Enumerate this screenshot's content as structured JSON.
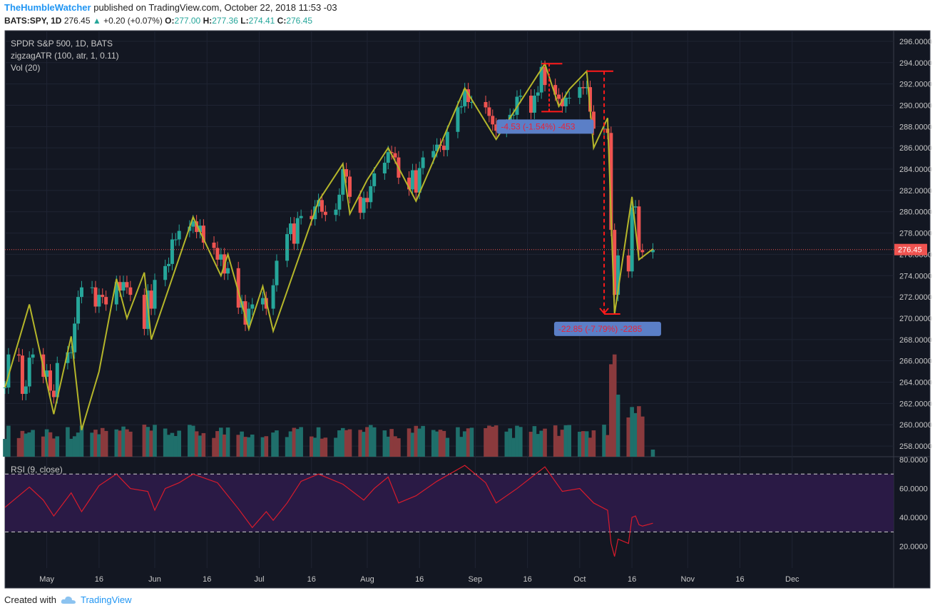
{
  "header": {
    "author": "TheHumbleWatcher",
    "published_text": "published on TradingView.com, October 22, 2018 11:53 -03",
    "symbol": "BATS:SPY, 1D",
    "last": "276.45",
    "change_arrow": "▲",
    "change": "+0.20 (+0.07%)",
    "o_label": "O:",
    "o_value": "277.00",
    "h_label": "H:",
    "h_value": "277.36",
    "l_label": "L:",
    "l_value": "274.41",
    "c_label": "C:",
    "c_value": "276.45"
  },
  "overlay": {
    "title": "SPDR S&P 500, 1D, BATS",
    "indicator": "zigzagATR (100, atr, 1, 0.11)",
    "volume": "Vol (20)",
    "rsi": "RSI (9, close)"
  },
  "footer": {
    "created_with": "Created with",
    "brand": "TradingView"
  },
  "colors": {
    "background": "#131722",
    "up": "#26a69a",
    "down": "#ef5350",
    "zigzag": "#b5b62a",
    "measure": "#ff1a1a",
    "rsi_line": "#d81b2c",
    "rsi_band": "#2a1a45",
    "price_tag": "#ef5350",
    "measure_label_bg": "#5b7fc7"
  },
  "chart_data": [
    {
      "type": "candlestick",
      "title": "SPDR S&P 500, 1D, BATS",
      "ylim": [
        257,
        297
      ],
      "y_ticks": [
        "258.0000",
        "260.0000",
        "262.0000",
        "264.0000",
        "266.0000",
        "268.0000",
        "270.0000",
        "272.0000",
        "274.0000",
        "276.0000",
        "278.0000",
        "280.0000",
        "282.0000",
        "284.0000",
        "286.0000",
        "288.0000",
        "290.0000",
        "292.0000",
        "294.0000",
        "296.0000"
      ],
      "last_price_label": "276.45",
      "x_ticks": [
        {
          "date": "2018-05-01",
          "label": "May"
        },
        {
          "date": "2018-05-16",
          "label": "16"
        },
        {
          "date": "2018-06-01",
          "label": "Jun"
        },
        {
          "date": "2018-06-16",
          "label": "16"
        },
        {
          "date": "2018-07-01",
          "label": "Jul"
        },
        {
          "date": "2018-07-16",
          "label": "16"
        },
        {
          "date": "2018-08-01",
          "label": "Aug"
        },
        {
          "date": "2018-08-16",
          "label": "16"
        },
        {
          "date": "2018-09-01",
          "label": "Sep"
        },
        {
          "date": "2018-09-16",
          "label": "16"
        },
        {
          "date": "2018-10-01",
          "label": "Oct"
        },
        {
          "date": "2018-10-16",
          "label": "16"
        },
        {
          "date": "2018-11-01",
          "label": "Nov"
        },
        {
          "date": "2018-11-16",
          "label": "16"
        },
        {
          "date": "2018-12-01",
          "label": "Dec"
        }
      ],
      "x_range": [
        "2018-04-19",
        "2018-12-25"
      ],
      "closes": [
        {
          "date": "2018-04-19",
          "close": 263.5
        },
        {
          "date": "2018-04-20",
          "close": 266.6
        },
        {
          "date": "2018-04-23",
          "close": 266.5
        },
        {
          "date": "2018-04-24",
          "close": 262.9
        },
        {
          "date": "2018-04-25",
          "close": 263.6
        },
        {
          "date": "2018-04-26",
          "close": 266.3
        },
        {
          "date": "2018-04-27",
          "close": 266.6
        },
        {
          "date": "2018-04-30",
          "close": 264.5
        },
        {
          "date": "2018-05-01",
          "close": 265.1
        },
        {
          "date": "2018-05-02",
          "close": 263.2
        },
        {
          "date": "2018-05-03",
          "close": 262.6
        },
        {
          "date": "2018-05-04",
          "close": 265.8
        },
        {
          "date": "2018-05-07",
          "close": 266.8
        },
        {
          "date": "2018-05-08",
          "close": 266.8
        },
        {
          "date": "2018-05-09",
          "close": 269.5
        },
        {
          "date": "2018-05-10",
          "close": 272.0
        },
        {
          "date": "2018-05-11",
          "close": 272.9
        },
        {
          "date": "2018-05-14",
          "close": 272.9
        },
        {
          "date": "2018-05-15",
          "close": 271.1
        },
        {
          "date": "2018-05-16",
          "close": 272.2
        },
        {
          "date": "2018-05-17",
          "close": 272.0
        },
        {
          "date": "2018-05-18",
          "close": 271.3
        },
        {
          "date": "2018-05-21",
          "close": 273.4
        },
        {
          "date": "2018-05-22",
          "close": 272.6
        },
        {
          "date": "2018-05-23",
          "close": 273.4
        },
        {
          "date": "2018-05-24",
          "close": 272.9
        },
        {
          "date": "2018-05-25",
          "close": 272.2
        },
        {
          "date": "2018-05-29",
          "close": 269.0
        },
        {
          "date": "2018-05-30",
          "close": 272.6
        },
        {
          "date": "2018-05-31",
          "close": 270.9
        },
        {
          "date": "2018-06-01",
          "close": 273.6
        },
        {
          "date": "2018-06-04",
          "close": 274.9
        },
        {
          "date": "2018-06-05",
          "close": 275.1
        },
        {
          "date": "2018-06-06",
          "close": 277.4
        },
        {
          "date": "2018-06-07",
          "close": 277.4
        },
        {
          "date": "2018-06-08",
          "close": 278.2
        },
        {
          "date": "2018-06-11",
          "close": 278.6
        },
        {
          "date": "2018-06-12",
          "close": 279.1
        },
        {
          "date": "2018-06-13",
          "close": 278.1
        },
        {
          "date": "2018-06-14",
          "close": 278.7
        },
        {
          "date": "2018-06-15",
          "close": 277.1
        },
        {
          "date": "2018-06-18",
          "close": 276.6
        },
        {
          "date": "2018-06-19",
          "close": 275.5
        },
        {
          "date": "2018-06-20",
          "close": 276.0
        },
        {
          "date": "2018-06-21",
          "close": 274.2
        },
        {
          "date": "2018-06-22",
          "close": 274.7
        },
        {
          "date": "2018-06-25",
          "close": 271.0
        },
        {
          "date": "2018-06-26",
          "close": 271.6
        },
        {
          "date": "2018-06-27",
          "close": 269.4
        },
        {
          "date": "2018-06-28",
          "close": 270.9
        },
        {
          "date": "2018-06-29",
          "close": 271.3
        },
        {
          "date": "2018-07-02",
          "close": 271.9
        },
        {
          "date": "2018-07-03",
          "close": 270.9
        },
        {
          "date": "2018-07-05",
          "close": 273.1
        },
        {
          "date": "2018-07-06",
          "close": 275.4
        },
        {
          "date": "2018-07-09",
          "close": 277.9
        },
        {
          "date": "2018-07-10",
          "close": 278.9
        },
        {
          "date": "2018-07-11",
          "close": 277.0
        },
        {
          "date": "2018-07-12",
          "close": 279.4
        },
        {
          "date": "2018-07-13",
          "close": 279.6
        },
        {
          "date": "2018-07-16",
          "close": 279.3
        },
        {
          "date": "2018-07-17",
          "close": 280.5
        },
        {
          "date": "2018-07-18",
          "close": 281.1
        },
        {
          "date": "2018-07-19",
          "close": 280.0
        },
        {
          "date": "2018-07-20",
          "close": 279.7
        },
        {
          "date": "2018-07-23",
          "close": 280.2
        },
        {
          "date": "2018-07-24",
          "close": 281.6
        },
        {
          "date": "2018-07-25",
          "close": 284.0
        },
        {
          "date": "2018-07-26",
          "close": 283.3
        },
        {
          "date": "2018-07-27",
          "close": 281.4
        },
        {
          "date": "2018-07-30",
          "close": 279.9
        },
        {
          "date": "2018-07-31",
          "close": 281.3
        },
        {
          "date": "2018-08-01",
          "close": 280.9
        },
        {
          "date": "2018-08-02",
          "close": 282.4
        },
        {
          "date": "2018-08-03",
          "close": 283.6
        },
        {
          "date": "2018-08-06",
          "close": 284.6
        },
        {
          "date": "2018-08-07",
          "close": 285.6
        },
        {
          "date": "2018-08-08",
          "close": 285.5
        },
        {
          "date": "2018-08-09",
          "close": 285.1
        },
        {
          "date": "2018-08-10",
          "close": 283.2
        },
        {
          "date": "2018-08-13",
          "close": 282.1
        },
        {
          "date": "2018-08-14",
          "close": 283.9
        },
        {
          "date": "2018-08-15",
          "close": 281.8
        },
        {
          "date": "2018-08-16",
          "close": 284.1
        },
        {
          "date": "2018-08-17",
          "close": 285.1
        },
        {
          "date": "2018-08-20",
          "close": 285.7
        },
        {
          "date": "2018-08-21",
          "close": 286.3
        },
        {
          "date": "2018-08-22",
          "close": 286.2
        },
        {
          "date": "2018-08-23",
          "close": 285.8
        },
        {
          "date": "2018-08-24",
          "close": 287.5
        },
        {
          "date": "2018-08-27",
          "close": 289.8
        },
        {
          "date": "2018-08-28",
          "close": 289.9
        },
        {
          "date": "2018-08-29",
          "close": 291.5
        },
        {
          "date": "2018-08-30",
          "close": 290.3
        },
        {
          "date": "2018-08-31",
          "close": 290.3
        },
        {
          "date": "2018-09-04",
          "close": 289.8
        },
        {
          "date": "2018-09-05",
          "close": 289.0
        },
        {
          "date": "2018-09-06",
          "close": 288.2
        },
        {
          "date": "2018-09-07",
          "close": 287.6
        },
        {
          "date": "2018-09-10",
          "close": 288.1
        },
        {
          "date": "2018-09-11",
          "close": 289.1
        },
        {
          "date": "2018-09-12",
          "close": 289.1
        },
        {
          "date": "2018-09-13",
          "close": 290.8
        },
        {
          "date": "2018-09-14",
          "close": 290.9
        },
        {
          "date": "2018-09-17",
          "close": 289.3
        },
        {
          "date": "2018-09-18",
          "close": 290.9
        },
        {
          "date": "2018-09-19",
          "close": 291.2
        },
        {
          "date": "2018-09-20",
          "close": 293.6
        },
        {
          "date": "2018-09-21",
          "close": 291.9
        },
        {
          "date": "2018-09-24",
          "close": 291.0
        },
        {
          "date": "2018-09-25",
          "close": 290.6
        },
        {
          "date": "2018-09-26",
          "close": 289.9
        },
        {
          "date": "2018-09-27",
          "close": 290.7
        },
        {
          "date": "2018-09-28",
          "close": 290.7
        },
        {
          "date": "2018-10-01",
          "close": 291.7
        },
        {
          "date": "2018-10-02",
          "close": 291.6
        },
        {
          "date": "2018-10-03",
          "close": 291.7
        },
        {
          "date": "2018-10-04",
          "close": 289.4
        },
        {
          "date": "2018-10-05",
          "close": 287.8
        },
        {
          "date": "2018-10-08",
          "close": 287.8
        },
        {
          "date": "2018-10-09",
          "close": 287.4
        },
        {
          "date": "2018-10-10",
          "close": 278.3
        },
        {
          "date": "2018-10-11",
          "close": 272.2
        },
        {
          "date": "2018-10-12",
          "close": 275.9
        },
        {
          "date": "2018-10-15",
          "close": 274.4
        },
        {
          "date": "2018-10-16",
          "close": 280.4
        },
        {
          "date": "2018-10-17",
          "close": 280.5
        },
        {
          "date": "2018-10-18",
          "close": 276.4
        },
        {
          "date": "2018-10-19",
          "close": 276.2
        },
        {
          "date": "2018-10-22",
          "close": 276.45
        }
      ],
      "zigzag": [
        {
          "date": "2018-04-19",
          "value": 263.5
        },
        {
          "date": "2018-04-26",
          "value": 271.3
        },
        {
          "date": "2018-05-03",
          "value": 261.0
        },
        {
          "date": "2018-05-08",
          "value": 268.3
        },
        {
          "date": "2018-05-11",
          "value": 259.5
        },
        {
          "date": "2018-05-16",
          "value": 265.0
        },
        {
          "date": "2018-05-21",
          "value": 273.7
        },
        {
          "date": "2018-05-24",
          "value": 270.0
        },
        {
          "date": "2018-05-29",
          "value": 274.3
        },
        {
          "date": "2018-05-31",
          "value": 268.0
        },
        {
          "date": "2018-06-12",
          "value": 279.5
        },
        {
          "date": "2018-06-20",
          "value": 274.0
        },
        {
          "date": "2018-06-22",
          "value": 276.0
        },
        {
          "date": "2018-06-28",
          "value": 269.0
        },
        {
          "date": "2018-07-02",
          "value": 273.0
        },
        {
          "date": "2018-07-05",
          "value": 268.8
        },
        {
          "date": "2018-07-18",
          "value": 281.0
        },
        {
          "date": "2018-07-25",
          "value": 284.5
        },
        {
          "date": "2018-07-27",
          "value": 279.8
        },
        {
          "date": "2018-08-01",
          "value": 283.0
        },
        {
          "date": "2018-08-07",
          "value": 286.0
        },
        {
          "date": "2018-08-15",
          "value": 281.0
        },
        {
          "date": "2018-08-29",
          "value": 291.6
        },
        {
          "date": "2018-09-07",
          "value": 286.8
        },
        {
          "date": "2018-09-21",
          "value": 293.9
        },
        {
          "date": "2018-09-25",
          "value": 289.9
        },
        {
          "date": "2018-09-28",
          "value": 291.5
        },
        {
          "date": "2018-10-03",
          "value": 293.2
        },
        {
          "date": "2018-10-05",
          "value": 286.0
        },
        {
          "date": "2018-10-09",
          "value": 288.8
        },
        {
          "date": "2018-10-11",
          "value": 270.4
        },
        {
          "date": "2018-10-16",
          "value": 281.4
        },
        {
          "date": "2018-10-18",
          "value": 275.5
        },
        {
          "date": "2018-10-22",
          "value": 276.5
        }
      ],
      "measure_labels": [
        "-4.53 (-1.54%) -453",
        "-22.85 (-7.79%) -2285"
      ]
    },
    {
      "type": "bar",
      "title": "Vol (20)",
      "note": "relative volume, last bars much higher around 2018-10-10..12"
    },
    {
      "type": "line",
      "title": "RSI (9, close)",
      "ylim": [
        5,
        82
      ],
      "y_ticks": [
        "20.0000",
        "40.0000",
        "60.0000",
        "80.0000"
      ],
      "bands": [
        30,
        70
      ],
      "points": [
        {
          "date": "2018-04-19",
          "value": 47
        },
        {
          "date": "2018-04-23",
          "value": 55
        },
        {
          "date": "2018-04-26",
          "value": 61
        },
        {
          "date": "2018-04-30",
          "value": 52
        },
        {
          "date": "2018-05-03",
          "value": 41
        },
        {
          "date": "2018-05-08",
          "value": 57
        },
        {
          "date": "2018-05-11",
          "value": 44
        },
        {
          "date": "2018-05-16",
          "value": 62
        },
        {
          "date": "2018-05-21",
          "value": 70
        },
        {
          "date": "2018-05-25",
          "value": 60
        },
        {
          "date": "2018-05-30",
          "value": 58
        },
        {
          "date": "2018-06-01",
          "value": 45
        },
        {
          "date": "2018-06-04",
          "value": 60
        },
        {
          "date": "2018-06-08",
          "value": 64
        },
        {
          "date": "2018-06-12",
          "value": 70
        },
        {
          "date": "2018-06-19",
          "value": 64
        },
        {
          "date": "2018-06-25",
          "value": 46
        },
        {
          "date": "2018-06-29",
          "value": 33
        },
        {
          "date": "2018-07-03",
          "value": 44
        },
        {
          "date": "2018-07-05",
          "value": 38
        },
        {
          "date": "2018-07-09",
          "value": 50
        },
        {
          "date": "2018-07-13",
          "value": 65
        },
        {
          "date": "2018-07-18",
          "value": 70
        },
        {
          "date": "2018-07-25",
          "value": 63
        },
        {
          "date": "2018-07-31",
          "value": 52
        },
        {
          "date": "2018-08-03",
          "value": 60
        },
        {
          "date": "2018-08-07",
          "value": 68
        },
        {
          "date": "2018-08-10",
          "value": 50
        },
        {
          "date": "2018-08-15",
          "value": 55
        },
        {
          "date": "2018-08-21",
          "value": 65
        },
        {
          "date": "2018-08-29",
          "value": 76
        },
        {
          "date": "2018-09-04",
          "value": 64
        },
        {
          "date": "2018-09-07",
          "value": 50
        },
        {
          "date": "2018-09-13",
          "value": 60
        },
        {
          "date": "2018-09-21",
          "value": 75
        },
        {
          "date": "2018-09-26",
          "value": 58
        },
        {
          "date": "2018-10-01",
          "value": 60
        },
        {
          "date": "2018-10-05",
          "value": 50
        },
        {
          "date": "2018-10-09",
          "value": 45
        },
        {
          "date": "2018-10-10",
          "value": 22
        },
        {
          "date": "2018-10-11",
          "value": 13
        },
        {
          "date": "2018-10-12",
          "value": 25
        },
        {
          "date": "2018-10-15",
          "value": 22
        },
        {
          "date": "2018-10-16",
          "value": 40
        },
        {
          "date": "2018-10-17",
          "value": 41
        },
        {
          "date": "2018-10-18",
          "value": 35
        },
        {
          "date": "2018-10-19",
          "value": 34
        },
        {
          "date": "2018-10-22",
          "value": 36
        }
      ]
    }
  ]
}
